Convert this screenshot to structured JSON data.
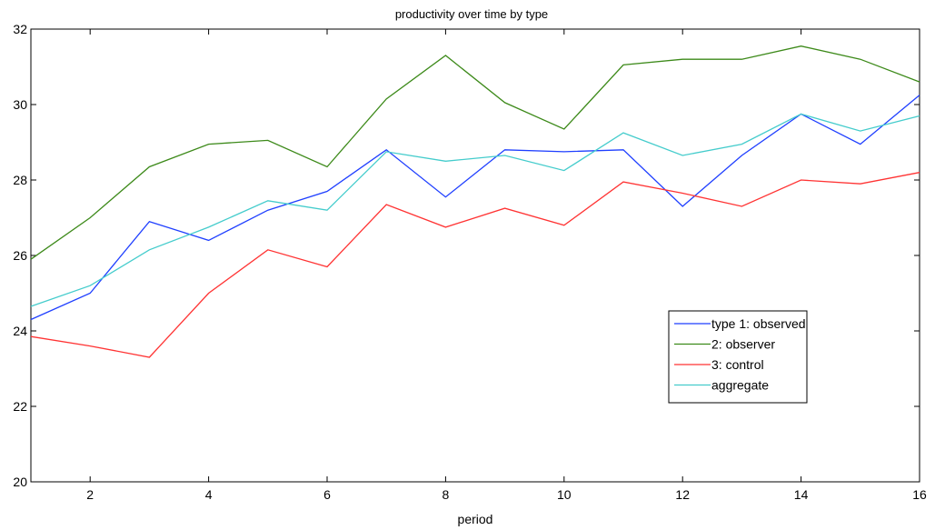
{
  "chart_data": {
    "type": "line",
    "title": "productivity over time by type",
    "xlabel": "period",
    "ylabel": "",
    "xlim": [
      1,
      16
    ],
    "ylim": [
      20,
      32
    ],
    "xticks": [
      2,
      4,
      6,
      8,
      10,
      12,
      14,
      16
    ],
    "yticks": [
      20,
      22,
      24,
      26,
      28,
      30,
      32
    ],
    "grid": false,
    "legend_position": "lower-right",
    "x": [
      1,
      2,
      3,
      4,
      5,
      6,
      7,
      8,
      9,
      10,
      11,
      12,
      13,
      14,
      15,
      16
    ],
    "series": [
      {
        "name": "type 1: observed",
        "color": "#1f3fff",
        "values": [
          24.3,
          25.0,
          26.9,
          26.4,
          27.2,
          27.7,
          28.8,
          27.55,
          28.8,
          28.75,
          28.8,
          27.3,
          28.65,
          29.75,
          28.95,
          30.25
        ]
      },
      {
        "name": "2: observer",
        "color": "#3d8a1a",
        "values": [
          25.9,
          27.0,
          28.35,
          28.95,
          29.05,
          28.35,
          30.15,
          31.3,
          30.05,
          29.35,
          31.05,
          31.2,
          31.2,
          31.55,
          31.2,
          30.6
        ]
      },
      {
        "name": "3: control",
        "color": "#ff3333",
        "values": [
          23.85,
          23.6,
          23.3,
          25.0,
          26.15,
          25.7,
          27.35,
          26.75,
          27.25,
          26.8,
          27.95,
          27.65,
          27.3,
          28.0,
          27.9,
          28.2
        ]
      },
      {
        "name": "aggregate",
        "color": "#44cccc",
        "values": [
          24.65,
          25.2,
          26.15,
          26.75,
          27.45,
          27.2,
          28.75,
          28.5,
          28.65,
          28.25,
          29.25,
          28.65,
          28.95,
          29.75,
          29.3,
          29.7
        ]
      }
    ]
  }
}
